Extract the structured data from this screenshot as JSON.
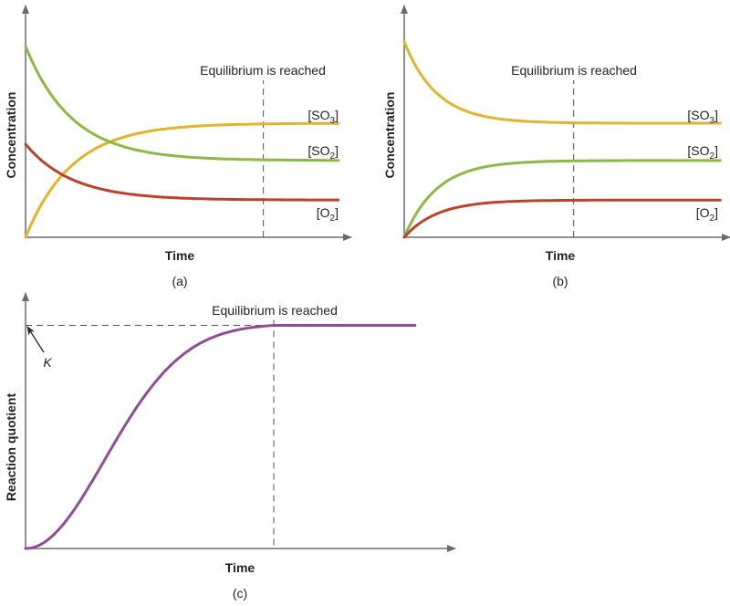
{
  "colors": {
    "SO3": "#e2b42e",
    "SO2": "#8db843",
    "O2": "#b9432b",
    "Q": "#8f4e93",
    "axis": "#6b6b6b"
  },
  "chart_data": [
    {
      "type": "line",
      "panel_label": "(a)",
      "xlabel": "Time",
      "ylabel": "Concentration",
      "annotation": "Equilibrium is reached",
      "equilibrium_time": 0.73,
      "series": [
        {
          "key": "SO3",
          "label": [
            "[SO",
            "3",
            "]"
          ],
          "initial": 0.0,
          "equilibrium": 0.49,
          "rate": 7
        },
        {
          "key": "SO2",
          "label": [
            "[SO",
            "2",
            "]"
          ],
          "initial": 0.82,
          "equilibrium": 0.33,
          "rate": 7
        },
        {
          "key": "O2",
          "label": [
            "[O",
            "2",
            "]"
          ],
          "initial": 0.4,
          "equilibrium": 0.16,
          "rate": 7
        }
      ]
    },
    {
      "type": "line",
      "panel_label": "(b)",
      "xlabel": "Time",
      "ylabel": "Concentration",
      "annotation": "Equilibrium is reached",
      "equilibrium_time": 0.52,
      "series": [
        {
          "key": "SO3",
          "label": [
            "[SO",
            "3",
            "]"
          ],
          "initial": 0.84,
          "equilibrium": 0.49,
          "rate": 10
        },
        {
          "key": "SO2",
          "label": [
            "[SO",
            "2",
            "]"
          ],
          "initial": 0.0,
          "equilibrium": 0.33,
          "rate": 10
        },
        {
          "key": "O2",
          "label": [
            "[O",
            "2",
            "]"
          ],
          "initial": 0.0,
          "equilibrium": 0.16,
          "rate": 10
        }
      ]
    },
    {
      "type": "line",
      "panel_label": "(c)",
      "xlabel": "Time",
      "ylabel": "Reaction quotient",
      "annotation": "Equilibrium is reached",
      "equilibrium_time": 0.58,
      "k_label": "K",
      "series": [
        {
          "key": "Q",
          "initial": 0.0,
          "equilibrium": 0.87
        }
      ]
    }
  ]
}
